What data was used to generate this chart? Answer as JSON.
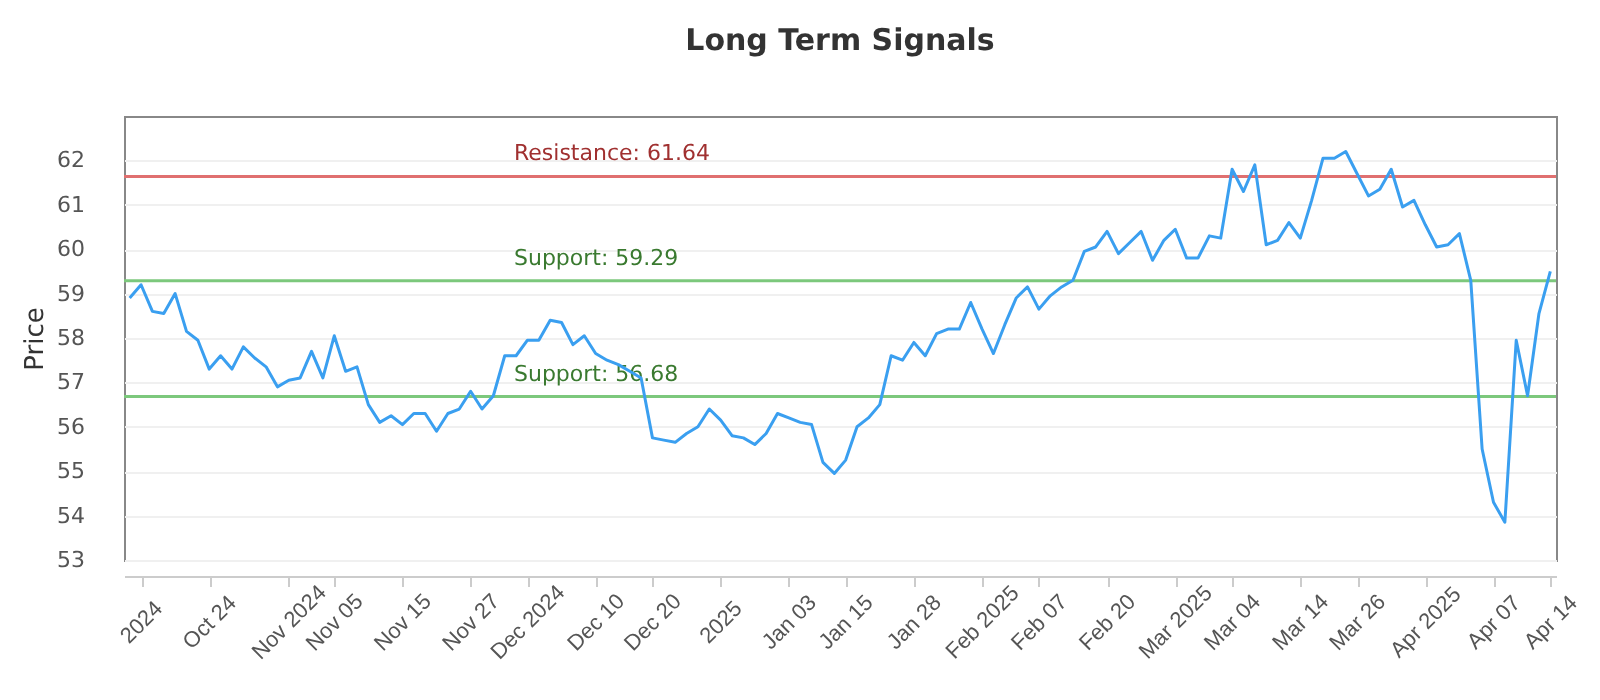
{
  "chart_data": {
    "type": "line",
    "title": "Long Term Signals",
    "ylabel": "Price",
    "categories": [
      null,
      "2024",
      null,
      null,
      null,
      null,
      null,
      "Oct 24",
      null,
      null,
      null,
      null,
      null,
      null,
      "Nov 2024",
      null,
      null,
      null,
      "Nov 05",
      null,
      null,
      null,
      null,
      null,
      "Nov 15",
      null,
      null,
      null,
      null,
      null,
      "Nov 27",
      null,
      null,
      null,
      null,
      "Dec 2024",
      null,
      null,
      null,
      null,
      null,
      "Dec 10",
      null,
      null,
      null,
      null,
      "Dec 20",
      null,
      null,
      null,
      null,
      null,
      "2025",
      null,
      null,
      null,
      null,
      null,
      "Jan 03",
      null,
      null,
      null,
      null,
      "Jan 15",
      null,
      null,
      null,
      null,
      null,
      "Jan 28",
      null,
      null,
      null,
      null,
      null,
      "Feb 2025",
      null,
      null,
      null,
      null,
      "Feb 07",
      null,
      null,
      null,
      null,
      null,
      "Feb 20",
      null,
      null,
      null,
      null,
      null,
      "Mar 2025",
      null,
      null,
      null,
      null,
      "Mar 04",
      null,
      null,
      null,
      null,
      null,
      "Mar 14",
      null,
      null,
      null,
      null,
      "Mar 26",
      null,
      null,
      null,
      null,
      null,
      "Apr 2025",
      null,
      null,
      null,
      null,
      null,
      "Apr 07",
      null,
      null,
      null,
      null,
      "Apr 14"
    ],
    "series": [
      {
        "color": "#3a9ff0",
        "values": [
          58.9,
          59.2,
          58.6,
          58.55,
          59.0,
          58.15,
          57.95,
          57.3,
          57.6,
          57.3,
          57.8,
          57.55,
          57.35,
          56.9,
          57.05,
          57.1,
          57.7,
          57.1,
          58.05,
          57.25,
          57.35,
          56.5,
          56.1,
          56.25,
          56.05,
          56.3,
          56.3,
          55.9,
          56.3,
          56.4,
          56.8,
          56.4,
          56.7,
          57.6,
          57.6,
          57.95,
          57.95,
          58.4,
          58.35,
          57.85,
          58.05,
          57.65,
          57.5,
          57.4,
          57.25,
          57.1,
          55.75,
          55.7,
          55.65,
          55.85,
          56.0,
          56.4,
          56.15,
          55.8,
          55.75,
          55.6,
          55.85,
          56.3,
          56.2,
          56.1,
          56.05,
          55.2,
          54.95,
          55.25,
          56.0,
          56.2,
          56.5,
          57.6,
          57.5,
          57.9,
          57.6,
          58.1,
          58.2,
          58.2,
          58.8,
          58.2,
          57.65,
          58.3,
          58.9,
          59.15,
          58.65,
          58.95,
          59.15,
          59.3,
          59.95,
          60.05,
          60.4,
          59.9,
          60.15,
          60.4,
          59.75,
          60.2,
          60.45,
          59.8,
          59.8,
          60.3,
          60.25,
          61.8,
          61.3,
          61.9,
          60.1,
          60.2,
          60.6,
          60.25,
          61.1,
          62.05,
          62.05,
          62.2,
          61.7,
          61.2,
          61.35,
          61.8,
          60.95,
          61.1,
          60.55,
          60.05,
          60.1,
          60.35,
          59.3,
          55.5,
          54.3,
          53.85,
          57.95,
          56.7,
          58.55,
          59.5
        ]
      }
    ],
    "ref_lines": [
      {
        "axis": "y",
        "value": 61.64,
        "label": "Resistance: 61.64",
        "color": "#e07070"
      },
      {
        "axis": "y",
        "value": 59.29,
        "label": "Support: 59.29",
        "color": "#7cc87c"
      },
      {
        "axis": "y",
        "value": 56.68,
        "label": "Support: 56.68",
        "color": "#7cc87c"
      }
    ],
    "ylim": [
      53,
      63
    ],
    "yticks": [
      53,
      54,
      55,
      56,
      57,
      58,
      59,
      60,
      61,
      62
    ],
    "grid": "y",
    "marker": "none",
    "line_style": "solid"
  }
}
